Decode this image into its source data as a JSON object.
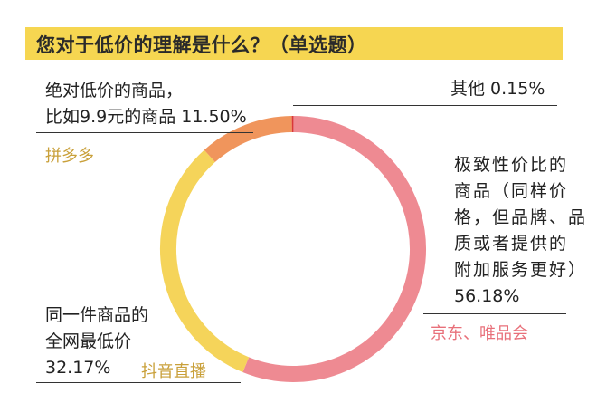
{
  "title": "您对于低价的理解是什么？（单选题）",
  "colors": {
    "title_bg": "#f6d651",
    "slice_pink": "#ee8a92",
    "slice_orange": "#f0955c",
    "slice_yellow": "#f5d45a",
    "slice_red": "#d93838",
    "platform_gold": "#c9a03a",
    "platform_pink": "#e8707a"
  },
  "labels": {
    "other": "其他  0.15%",
    "low_price_line1": "绝对低价的商品，",
    "low_price_line2": "比如9.9元的商品  11.50%",
    "value_line1": "极致性价比的",
    "value_line2": "商品（同样价",
    "value_line3": "格，但品牌、品",
    "value_line4": "质或者提供的",
    "value_line5": "附加服务更好）",
    "value_pct": "56.18%",
    "lowest_line1": "同一件商品的",
    "lowest_line2": "全网最低价",
    "lowest_pct": "32.17%"
  },
  "platforms": {
    "pdd": "拼多多",
    "jd_vip": "京东、唯品会",
    "douyin": "抖音直播"
  },
  "chart_data": {
    "type": "pie",
    "donut": true,
    "title": "您对于低价的理解是什么？（单选题）",
    "slices": [
      {
        "label": "极致性价比的商品（同样价格，但品牌、品质或者提供的附加服务更好）",
        "value": 56.18,
        "color": "#ee8a92"
      },
      {
        "label": "同一件商品的全网最低价",
        "value": 32.17,
        "color": "#f5d45a"
      },
      {
        "label": "绝对低价的商品，比如9.9元的商品",
        "value": 11.5,
        "color": "#f0955c"
      },
      {
        "label": "其他",
        "value": 0.15,
        "color": "#d93838"
      }
    ]
  }
}
